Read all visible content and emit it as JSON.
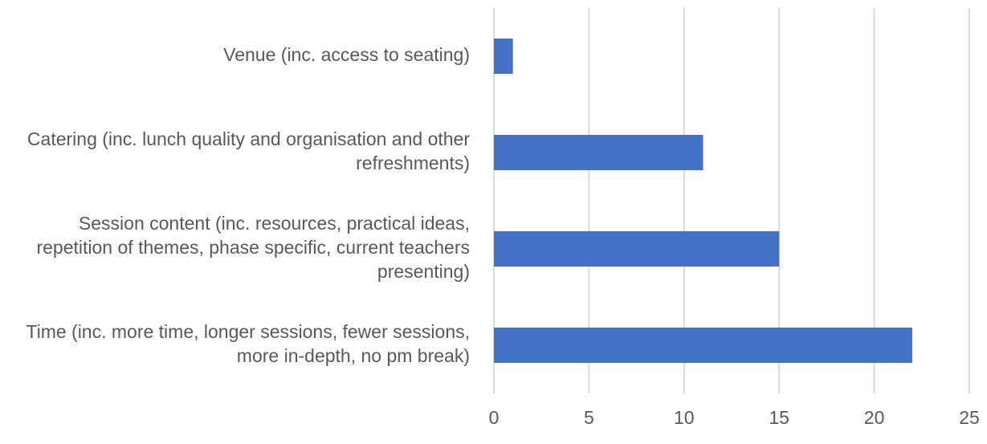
{
  "chart_data": {
    "type": "barh",
    "categories": [
      "Venue (inc. access to seating)",
      "Catering (inc. lunch quality and organisation and other refreshments)",
      "Session content (inc. resources, practical ideas, repetition of themes, phase specific, current teachers presenting)",
      "Time (inc. more time, longer sessions, fewer sessions, more in-depth, no pm break)"
    ],
    "values": [
      1,
      11,
      15,
      22
    ],
    "color": "#4472c4",
    "xlim": [
      0,
      25
    ],
    "xticks": [
      0,
      5,
      10,
      15,
      20,
      25
    ],
    "grid": true
  }
}
